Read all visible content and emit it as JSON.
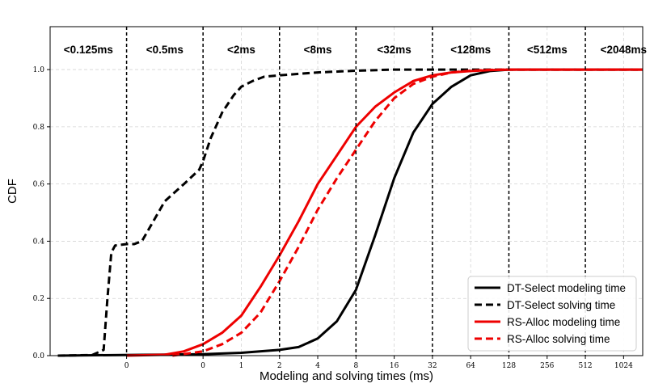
{
  "chart_data": {
    "type": "line",
    "title": "",
    "xlabel": "Modeling and solving times (ms)",
    "ylabel": "CDF",
    "xscale": "log2",
    "xlim_log2": [
      -5,
      10.5
    ],
    "ylim": [
      0,
      1.15
    ],
    "grid": true,
    "legend_position": "bottom-right",
    "x_ticks": [
      {
        "log2": -3,
        "label": "0"
      },
      {
        "log2": -1,
        "label": "0"
      },
      {
        "log2": 0,
        "label": "1"
      },
      {
        "log2": 1,
        "label": "2"
      },
      {
        "log2": 2,
        "label": "4"
      },
      {
        "log2": 3,
        "label": "8"
      },
      {
        "log2": 4,
        "label": "16"
      },
      {
        "log2": 5,
        "label": "32"
      },
      {
        "log2": 6,
        "label": "64"
      },
      {
        "log2": 7,
        "label": "128"
      },
      {
        "log2": 8,
        "label": "256"
      },
      {
        "log2": 9,
        "label": "512"
      },
      {
        "log2": 10,
        "label": "1024"
      }
    ],
    "y_ticks": [
      {
        "value": 0.0,
        "label": "0.0"
      },
      {
        "value": 0.2,
        "label": "0.2"
      },
      {
        "value": 0.4,
        "label": "0.4"
      },
      {
        "value": 0.6,
        "label": "0.6"
      },
      {
        "value": 0.8,
        "label": "0.8"
      },
      {
        "value": 1.0,
        "label": "1.0"
      }
    ],
    "thresholds_log2": [
      -3,
      -1,
      1,
      3,
      5,
      7,
      9
    ],
    "region_labels": [
      {
        "log2": -4.0,
        "label": "<0.125ms"
      },
      {
        "log2": -2.0,
        "label": "<0.5ms"
      },
      {
        "log2": 0.0,
        "label": "<2ms"
      },
      {
        "log2": 2.0,
        "label": "<8ms"
      },
      {
        "log2": 4.0,
        "label": "<32ms"
      },
      {
        "log2": 6.0,
        "label": "<128ms"
      },
      {
        "log2": 8.0,
        "label": "<512ms"
      },
      {
        "log2": 10.0,
        "label": "<2048ms"
      }
    ],
    "series": [
      {
        "name": "DT-Select modeling time",
        "color": "#000000",
        "dash": "solid",
        "log2_x": [
          -4.8,
          -1,
          0,
          1,
          1.5,
          2,
          2.5,
          3,
          3.5,
          4,
          4.5,
          5,
          5.5,
          6,
          6.5,
          7,
          10.5
        ],
        "y": [
          0.0,
          0.005,
          0.01,
          0.02,
          0.03,
          0.06,
          0.12,
          0.23,
          0.42,
          0.62,
          0.78,
          0.88,
          0.94,
          0.98,
          0.995,
          1.0,
          1.0
        ]
      },
      {
        "name": "DT-Select solving time",
        "color": "#000000",
        "dash": "dashed",
        "log2_x": [
          -4.8,
          -3.9,
          -3.6,
          -3.5,
          -3.4,
          -3.3,
          -3.0,
          -2.8,
          -2.6,
          -2.3,
          -2.0,
          -1.5,
          -1.1,
          -1.0,
          -0.8,
          -0.5,
          -0.2,
          0.0,
          0.3,
          0.6,
          1.0,
          1.5,
          2.0,
          3.0,
          4.0,
          10.5
        ],
        "y": [
          0.0,
          0.002,
          0.02,
          0.2,
          0.36,
          0.385,
          0.39,
          0.39,
          0.4,
          0.47,
          0.54,
          0.6,
          0.65,
          0.68,
          0.76,
          0.85,
          0.91,
          0.94,
          0.96,
          0.975,
          0.98,
          0.985,
          0.99,
          0.996,
          1.0,
          1.0
        ]
      },
      {
        "name": "RS-Alloc modeling time",
        "color": "#ee0000",
        "dash": "solid",
        "log2_x": [
          -3.0,
          -2.0,
          -1.5,
          -1.0,
          -0.5,
          0.0,
          0.5,
          1.0,
          1.5,
          2.0,
          2.5,
          3.0,
          3.5,
          4.0,
          4.5,
          5.0,
          5.5,
          6.0,
          6.5,
          7.0,
          10.5
        ],
        "y": [
          0.0,
          0.003,
          0.015,
          0.04,
          0.08,
          0.14,
          0.24,
          0.35,
          0.47,
          0.6,
          0.7,
          0.8,
          0.87,
          0.92,
          0.96,
          0.98,
          0.99,
          0.995,
          0.998,
          1.0,
          1.0
        ]
      },
      {
        "name": "RS-Alloc solving time",
        "color": "#ee0000",
        "dash": "dashed",
        "log2_x": [
          -1.8,
          -1.0,
          -0.5,
          0.0,
          0.5,
          1.0,
          1.5,
          2.0,
          2.5,
          3.0,
          3.5,
          4.0,
          4.5,
          5.0,
          5.5,
          6.0,
          6.5,
          7.0,
          10.5
        ],
        "y": [
          0.0,
          0.015,
          0.04,
          0.08,
          0.15,
          0.26,
          0.38,
          0.51,
          0.62,
          0.72,
          0.82,
          0.9,
          0.95,
          0.975,
          0.99,
          0.996,
          0.999,
          1.0,
          1.0
        ]
      }
    ]
  }
}
